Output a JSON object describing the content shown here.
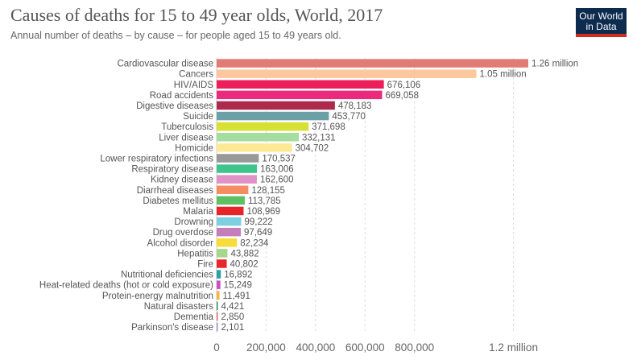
{
  "header": {
    "title": "Causes of deaths for 15 to 49 year olds, World, 2017",
    "subtitle": "Annual number of deaths – by cause – for people aged 15 to 49 years old.",
    "logo_line1": "Our World",
    "logo_line2": "in Data"
  },
  "chart_data": {
    "type": "bar",
    "orientation": "horizontal",
    "title": "Causes of deaths for 15 to 49 year olds, World, 2017",
    "subtitle": "Annual number of deaths – by cause – for people aged 15 to 49 years old.",
    "xlim": [
      0,
      1260000
    ],
    "grid": true,
    "x_ticks": [
      {
        "value": 0,
        "label": "0"
      },
      {
        "value": 200000,
        "label": "200,000"
      },
      {
        "value": 400000,
        "label": "400,000"
      },
      {
        "value": 600000,
        "label": "600,000"
      },
      {
        "value": 800000,
        "label": "800,000"
      },
      {
        "value": 1200000,
        "label": "1.2 million"
      }
    ],
    "bars": [
      {
        "category": "Cardiovascular disease",
        "value": 1260000,
        "label": "1.26 million",
        "color": "#e07b76"
      },
      {
        "category": "Cancers",
        "value": 1050000,
        "label": "1.05 million",
        "color": "#fcc79d"
      },
      {
        "category": "HIV/AIDS",
        "value": 676106,
        "label": "676,106",
        "color": "#ed1f5b"
      },
      {
        "category": "Road accidents",
        "value": 669058,
        "label": "669,058",
        "color": "#ec2a7d"
      },
      {
        "category": "Digestive diseases",
        "value": 478183,
        "label": "478,183",
        "color": "#ad2a4d"
      },
      {
        "category": "Suicide",
        "value": 453770,
        "label": "453,770",
        "color": "#6aa0a6"
      },
      {
        "category": "Tuberculosis",
        "value": 371698,
        "label": "371,698",
        "color": "#d7e033"
      },
      {
        "category": "Liver disease",
        "value": 332131,
        "label": "332,131",
        "color": "#a5dca0"
      },
      {
        "category": "Homicide",
        "value": 304702,
        "label": "304,702",
        "color": "#fde995"
      },
      {
        "category": "Lower respiratory infections",
        "value": 170537,
        "label": "170,537",
        "color": "#999999"
      },
      {
        "category": "Respiratory disease",
        "value": 163006,
        "label": "163,006",
        "color": "#3fc58c"
      },
      {
        "category": "Kidney disease",
        "value": 162600,
        "label": "162,600",
        "color": "#e192c7"
      },
      {
        "category": "Diarrheal diseases",
        "value": 128155,
        "label": "128,155",
        "color": "#f58c63"
      },
      {
        "category": "Diabetes mellitus",
        "value": 113785,
        "label": "113,785",
        "color": "#5dc163"
      },
      {
        "category": "Malaria",
        "value": 108969,
        "label": "108,969",
        "color": "#e8232b"
      },
      {
        "category": "Drowning",
        "value": 99222,
        "label": "99,222",
        "color": "#7ccfe0"
      },
      {
        "category": "Drug overdose",
        "value": 97649,
        "label": "97,649",
        "color": "#c57ebc"
      },
      {
        "category": "Alcohol disorder",
        "value": 82234,
        "label": "82,234",
        "color": "#f7dc3b"
      },
      {
        "category": "Hepatitis",
        "value": 43882,
        "label": "43,882",
        "color": "#a5d88c"
      },
      {
        "category": "Fire",
        "value": 40802,
        "label": "40,802",
        "color": "#e8262b"
      },
      {
        "category": "Nutritional deficiencies",
        "value": 16892,
        "label": "16,892",
        "color": "#2aa0a8"
      },
      {
        "category": "Heat-related deaths (hot or cold exposure)",
        "value": 15249,
        "label": "15,249",
        "color": "#c94fc9"
      },
      {
        "category": "Protein-energy malnutrition",
        "value": 11491,
        "label": "11,491",
        "color": "#f5b43b"
      },
      {
        "category": "Natural disasters",
        "value": 4421,
        "label": "4,421",
        "color": "#3a8f6f"
      },
      {
        "category": "Dementia",
        "value": 2850,
        "label": "2,850",
        "color": "#e66a7a"
      },
      {
        "category": "Parkinson's disease",
        "value": 2101,
        "label": "2,101",
        "color": "#9999cc"
      }
    ]
  }
}
